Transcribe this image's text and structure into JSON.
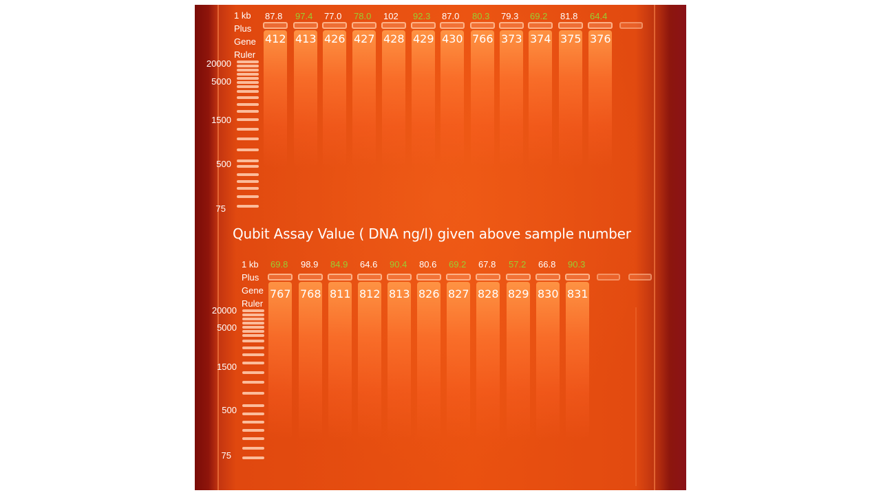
{
  "caption": "Qubit Assay Value ( DNA ng/l) given above sample number",
  "ladder": {
    "line1": "1 kb",
    "line2": "Plus",
    "line3": "Gene",
    "line4": "Ruler"
  },
  "mw_markers": [
    "20000",
    "5000",
    "1500",
    "500",
    "75"
  ],
  "top_row": {
    "values": [
      "87.8",
      "97.4",
      "77.0",
      "78.0",
      "102",
      "92.3",
      "87.0",
      "80.3",
      "79.3",
      "69.2",
      "81.8",
      "64.4"
    ],
    "value_colors": [
      "white",
      "green",
      "white",
      "green",
      "white",
      "green",
      "white",
      "green",
      "white",
      "green",
      "white",
      "green"
    ],
    "samples": [
      "412",
      "413",
      "426",
      "427",
      "428",
      "429",
      "430",
      "766",
      "373",
      "374",
      "375",
      "376"
    ]
  },
  "bottom_row": {
    "values": [
      "69.8",
      "98.9",
      "84.9",
      "64.6",
      "90.4",
      "80.6",
      "69.2",
      "67.8",
      "57.2",
      "66.8",
      "90.3"
    ],
    "value_colors": [
      "green",
      "white",
      "green",
      "white",
      "green",
      "white",
      "green",
      "white",
      "green",
      "white",
      "green"
    ],
    "samples": [
      "767",
      "768",
      "811",
      "812",
      "813",
      "826",
      "827",
      "828",
      "829",
      "830",
      "831"
    ]
  },
  "colors": {
    "gel": "#ea5110",
    "gel_edge": "#8a1218",
    "label_white": "#ffffff",
    "label_green": "#9acd32"
  }
}
